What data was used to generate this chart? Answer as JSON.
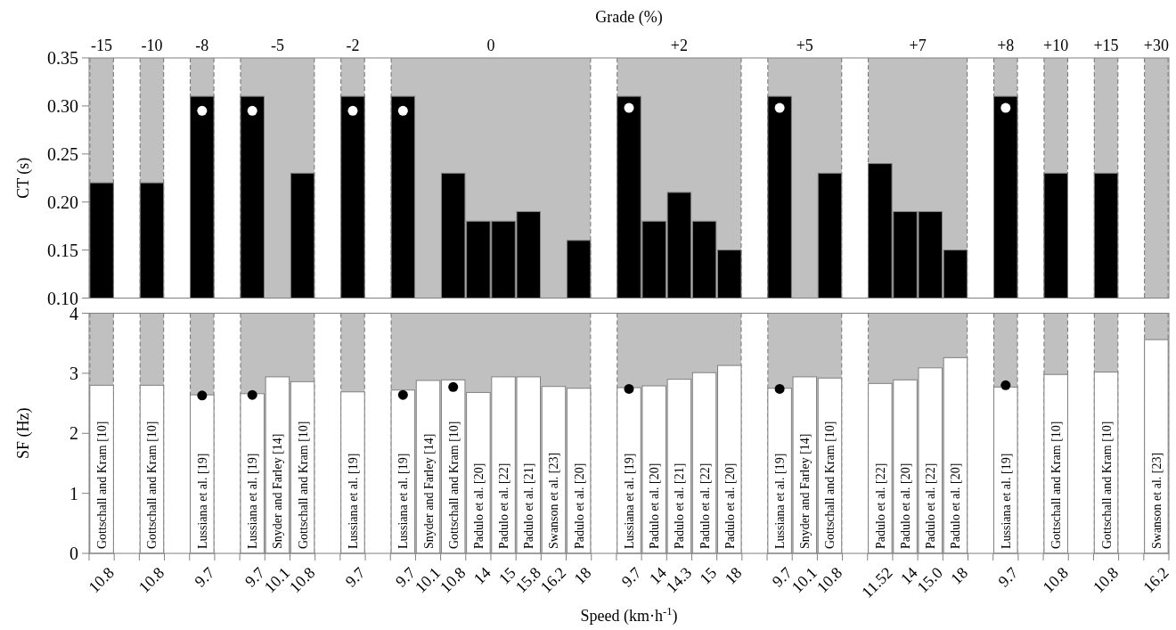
{
  "chart_data": [
    {
      "type": "bar",
      "x2label": "Grade (%)",
      "ylabel": "CT (s)",
      "tick_labels": "y",
      "grid": false,
      "categories": [
        "10.8",
        null,
        "10.8",
        null,
        "9.7",
        null,
        "9.7",
        "10.1",
        "10.8",
        null,
        "9.7",
        null,
        "9.7",
        "10.1",
        "10.8",
        "14",
        "15",
        "15.8",
        "16.2",
        "18",
        null,
        "9.7",
        "14",
        "14.3",
        "15",
        "18",
        null,
        "9.7",
        "10.1",
        "10.8",
        null,
        "11.52",
        "14",
        "15.0",
        "18",
        null,
        "9.7",
        null,
        "10.8",
        null,
        "10.8",
        null,
        "16.2"
      ],
      "ylim": [
        0.1,
        0.35
      ],
      "yticks": [
        {
          "value": 0.1,
          "label": "0.10"
        },
        {
          "value": 0.15,
          "label": "0.15"
        },
        {
          "value": 0.2,
          "label": "0.20"
        },
        {
          "value": 0.25,
          "label": "0.25"
        },
        {
          "value": 0.3,
          "label": "0.30"
        },
        {
          "value": 0.35,
          "label": "0.35"
        }
      ],
      "annotations": [
        "-15",
        "-10",
        "-8",
        "-5",
        "-2",
        "0",
        "+2",
        "+5",
        "+7",
        "+8",
        "+10",
        "+15",
        "+30"
      ],
      "series": [
        {
          "color": "#000000",
          "values": [
            0.22,
            null,
            0.22,
            null,
            0.31,
            null,
            0.31,
            null,
            0.23,
            null,
            0.31,
            null,
            0.31,
            null,
            0.23,
            0.18,
            0.18,
            0.19,
            null,
            0.16,
            null,
            0.31,
            0.18,
            0.21,
            0.18,
            0.15,
            null,
            0.31,
            null,
            0.23,
            null,
            0.24,
            0.19,
            0.19,
            0.15,
            null,
            0.31,
            null,
            0.23,
            null,
            0.23,
            null,
            null
          ]
        },
        {
          "type": "scatter",
          "marker": "circle",
          "color": "#ffffff",
          "values": [
            null,
            null,
            null,
            null,
            0.295,
            null,
            0.295,
            null,
            null,
            null,
            0.295,
            null,
            0.295,
            null,
            null,
            null,
            null,
            null,
            null,
            null,
            null,
            0.298,
            null,
            null,
            null,
            null,
            null,
            0.298,
            null,
            null,
            null,
            null,
            null,
            null,
            null,
            null,
            0.298,
            null,
            null,
            null,
            null,
            null,
            null
          ]
        }
      ]
    },
    {
      "type": "bar",
      "xlabel": "Speed (km·h$^{-1}$)",
      "ylabel": "SF (Hz)",
      "grid": false,
      "categories": [
        "10.8",
        null,
        "10.8",
        null,
        "9.7",
        null,
        "9.7",
        "10.1",
        "10.8",
        null,
        "9.7",
        null,
        "9.7",
        "10.1",
        "10.8",
        "14",
        "15",
        "15.8",
        "16.2",
        "18",
        null,
        "9.7",
        "14",
        "14.3",
        "15",
        "18",
        null,
        "9.7",
        "10.1",
        "10.8",
        null,
        "11.52",
        "14",
        "15.0",
        "18",
        null,
        "9.7",
        null,
        "10.8",
        null,
        "10.8",
        null,
        "16.2"
      ],
      "ylim": [
        0,
        4
      ],
      "yticks": [
        0,
        1,
        2,
        3,
        4
      ],
      "annotations": [
        "Gottschall and Kram [10]",
        "Gottschall and Kram [10]",
        "Lussiana et al. [19]",
        "Lussiana et al. [19]",
        "Snyder and Farley [14]",
        "Gottschall and Kram [10]",
        "Lussiana et al. [19]",
        "Lussiana et al. [19]",
        "Snyder and Farley [14]",
        "Gottschall and Kram [10]",
        "Padulo et al. [20]",
        "Padulo et al. [22]",
        "Padulo et al. [21]",
        "Swanson et al. [23]",
        "Padulo et al. [20]",
        "Lussiana et al. [19]",
        "Padulo et al. [20]",
        "Padulo et al. [21]",
        "Padulo et al. [22]",
        "Padulo et al. [20]",
        "Lussiana et al. [19]",
        "Snyder and Farley [14]",
        "Gottschall and Kram [10]",
        "Padulo et al. [22]",
        "Padulo et al. [20]",
        "Padulo et al. [22]",
        "Padulo et al. [20]",
        "Lussiana et al. [19]",
        "Gottschall and Kram [10]",
        "Gottschall and Kram [10]",
        "Swanson et al. [23]"
      ],
      "series": [
        {
          "color": "#ffffff",
          "values": [
            2.8,
            null,
            2.8,
            null,
            2.64,
            null,
            2.66,
            2.94,
            2.86,
            null,
            2.69,
            null,
            2.72,
            2.88,
            2.89,
            2.68,
            2.94,
            2.94,
            2.78,
            2.75,
            null,
            2.76,
            2.79,
            2.9,
            3.01,
            3.13,
            null,
            2.75,
            2.94,
            2.92,
            null,
            2.83,
            2.89,
            3.09,
            3.26,
            null,
            2.77,
            null,
            2.98,
            null,
            3.02,
            null,
            3.56
          ]
        },
        {
          "type": "scatter",
          "marker": "circle",
          "color": "#000000",
          "values": [
            null,
            null,
            null,
            null,
            2.63,
            null,
            2.64,
            null,
            null,
            null,
            null,
            null,
            2.64,
            null,
            2.77,
            null,
            null,
            null,
            null,
            null,
            null,
            2.74,
            null,
            null,
            null,
            null,
            null,
            2.74,
            null,
            null,
            null,
            null,
            null,
            null,
            null,
            null,
            2.8,
            null,
            null,
            null,
            null,
            null,
            null
          ]
        }
      ]
    }
  ]
}
